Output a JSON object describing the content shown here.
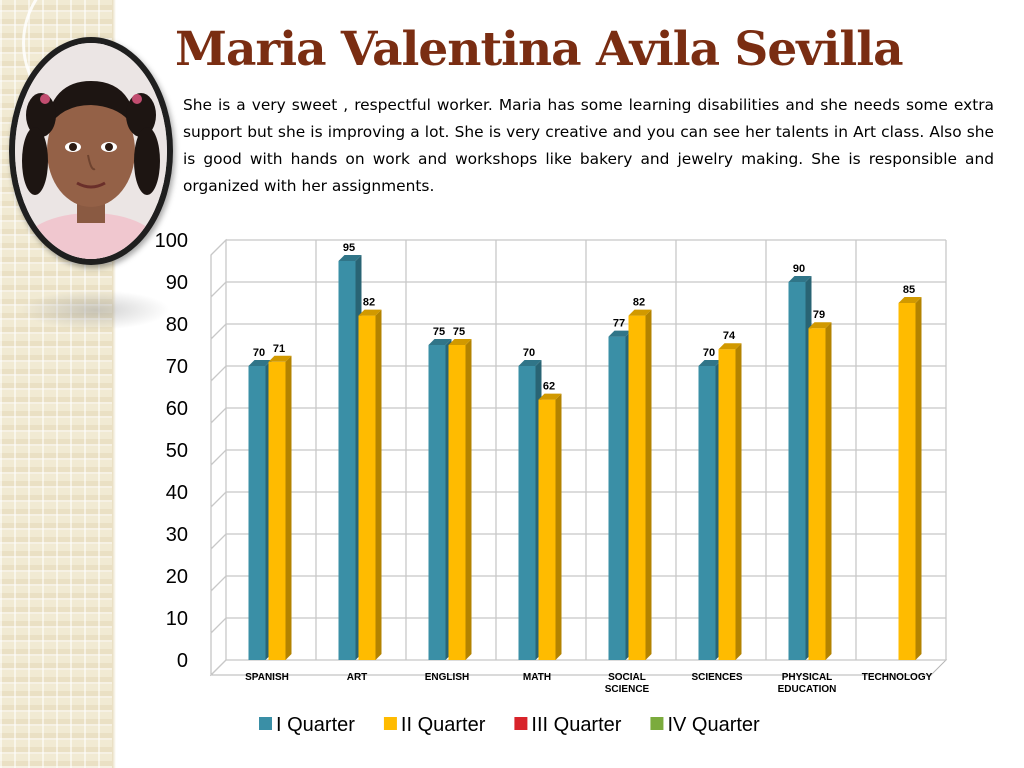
{
  "header": {
    "title": "Maria Valentina Avila Sevilla",
    "description": "She  is a very sweet , respectful worker.  Maria has some learning disabilities and she needs some extra support but she is improving a lot.  She is very creative and you can see her talents in Art class. Also she is good with hands on work and workshops like bakery and jewelry making.  She is responsible and organized  with her assignments."
  },
  "photo": {
    "icon": "student-portrait-photo"
  },
  "colors": {
    "title": "#7a2d12",
    "q1": "#3a8fa6",
    "q2": "#ffbb00",
    "q3": "#d8232a",
    "q4": "#7bab3d"
  },
  "chart_data": {
    "type": "bar",
    "title": "",
    "xlabel": "",
    "ylabel": "",
    "ylim": [
      0,
      100
    ],
    "yticks": [
      "0",
      "10",
      "20",
      "30",
      "40",
      "50",
      "60",
      "70",
      "80",
      "90",
      "100"
    ],
    "grid": true,
    "legend_position": "bottom",
    "categories": [
      [
        "SPANISH"
      ],
      [
        "ART"
      ],
      [
        "ENGLISH"
      ],
      [
        "MATH"
      ],
      [
        "SOCIAL",
        "SCIENCE"
      ],
      [
        "SCIENCES"
      ],
      [
        "PHYSICAL",
        "EDUCATION"
      ],
      [
        "TECHNOLOGY"
      ]
    ],
    "series": [
      {
        "name": "I Quarter",
        "color": "#3a8fa6",
        "values": [
          70,
          95,
          75,
          70,
          77,
          70,
          90,
          null
        ]
      },
      {
        "name": "II Quarter",
        "color": "#ffbb00",
        "values": [
          71,
          82,
          75,
          62,
          82,
          74,
          79,
          85
        ]
      },
      {
        "name": "III Quarter",
        "color": "#d8232a",
        "values": [
          null,
          null,
          null,
          null,
          null,
          null,
          null,
          null
        ]
      },
      {
        "name": "IV Quarter",
        "color": "#7bab3d",
        "values": [
          null,
          null,
          null,
          null,
          null,
          null,
          null,
          null
        ]
      }
    ]
  }
}
